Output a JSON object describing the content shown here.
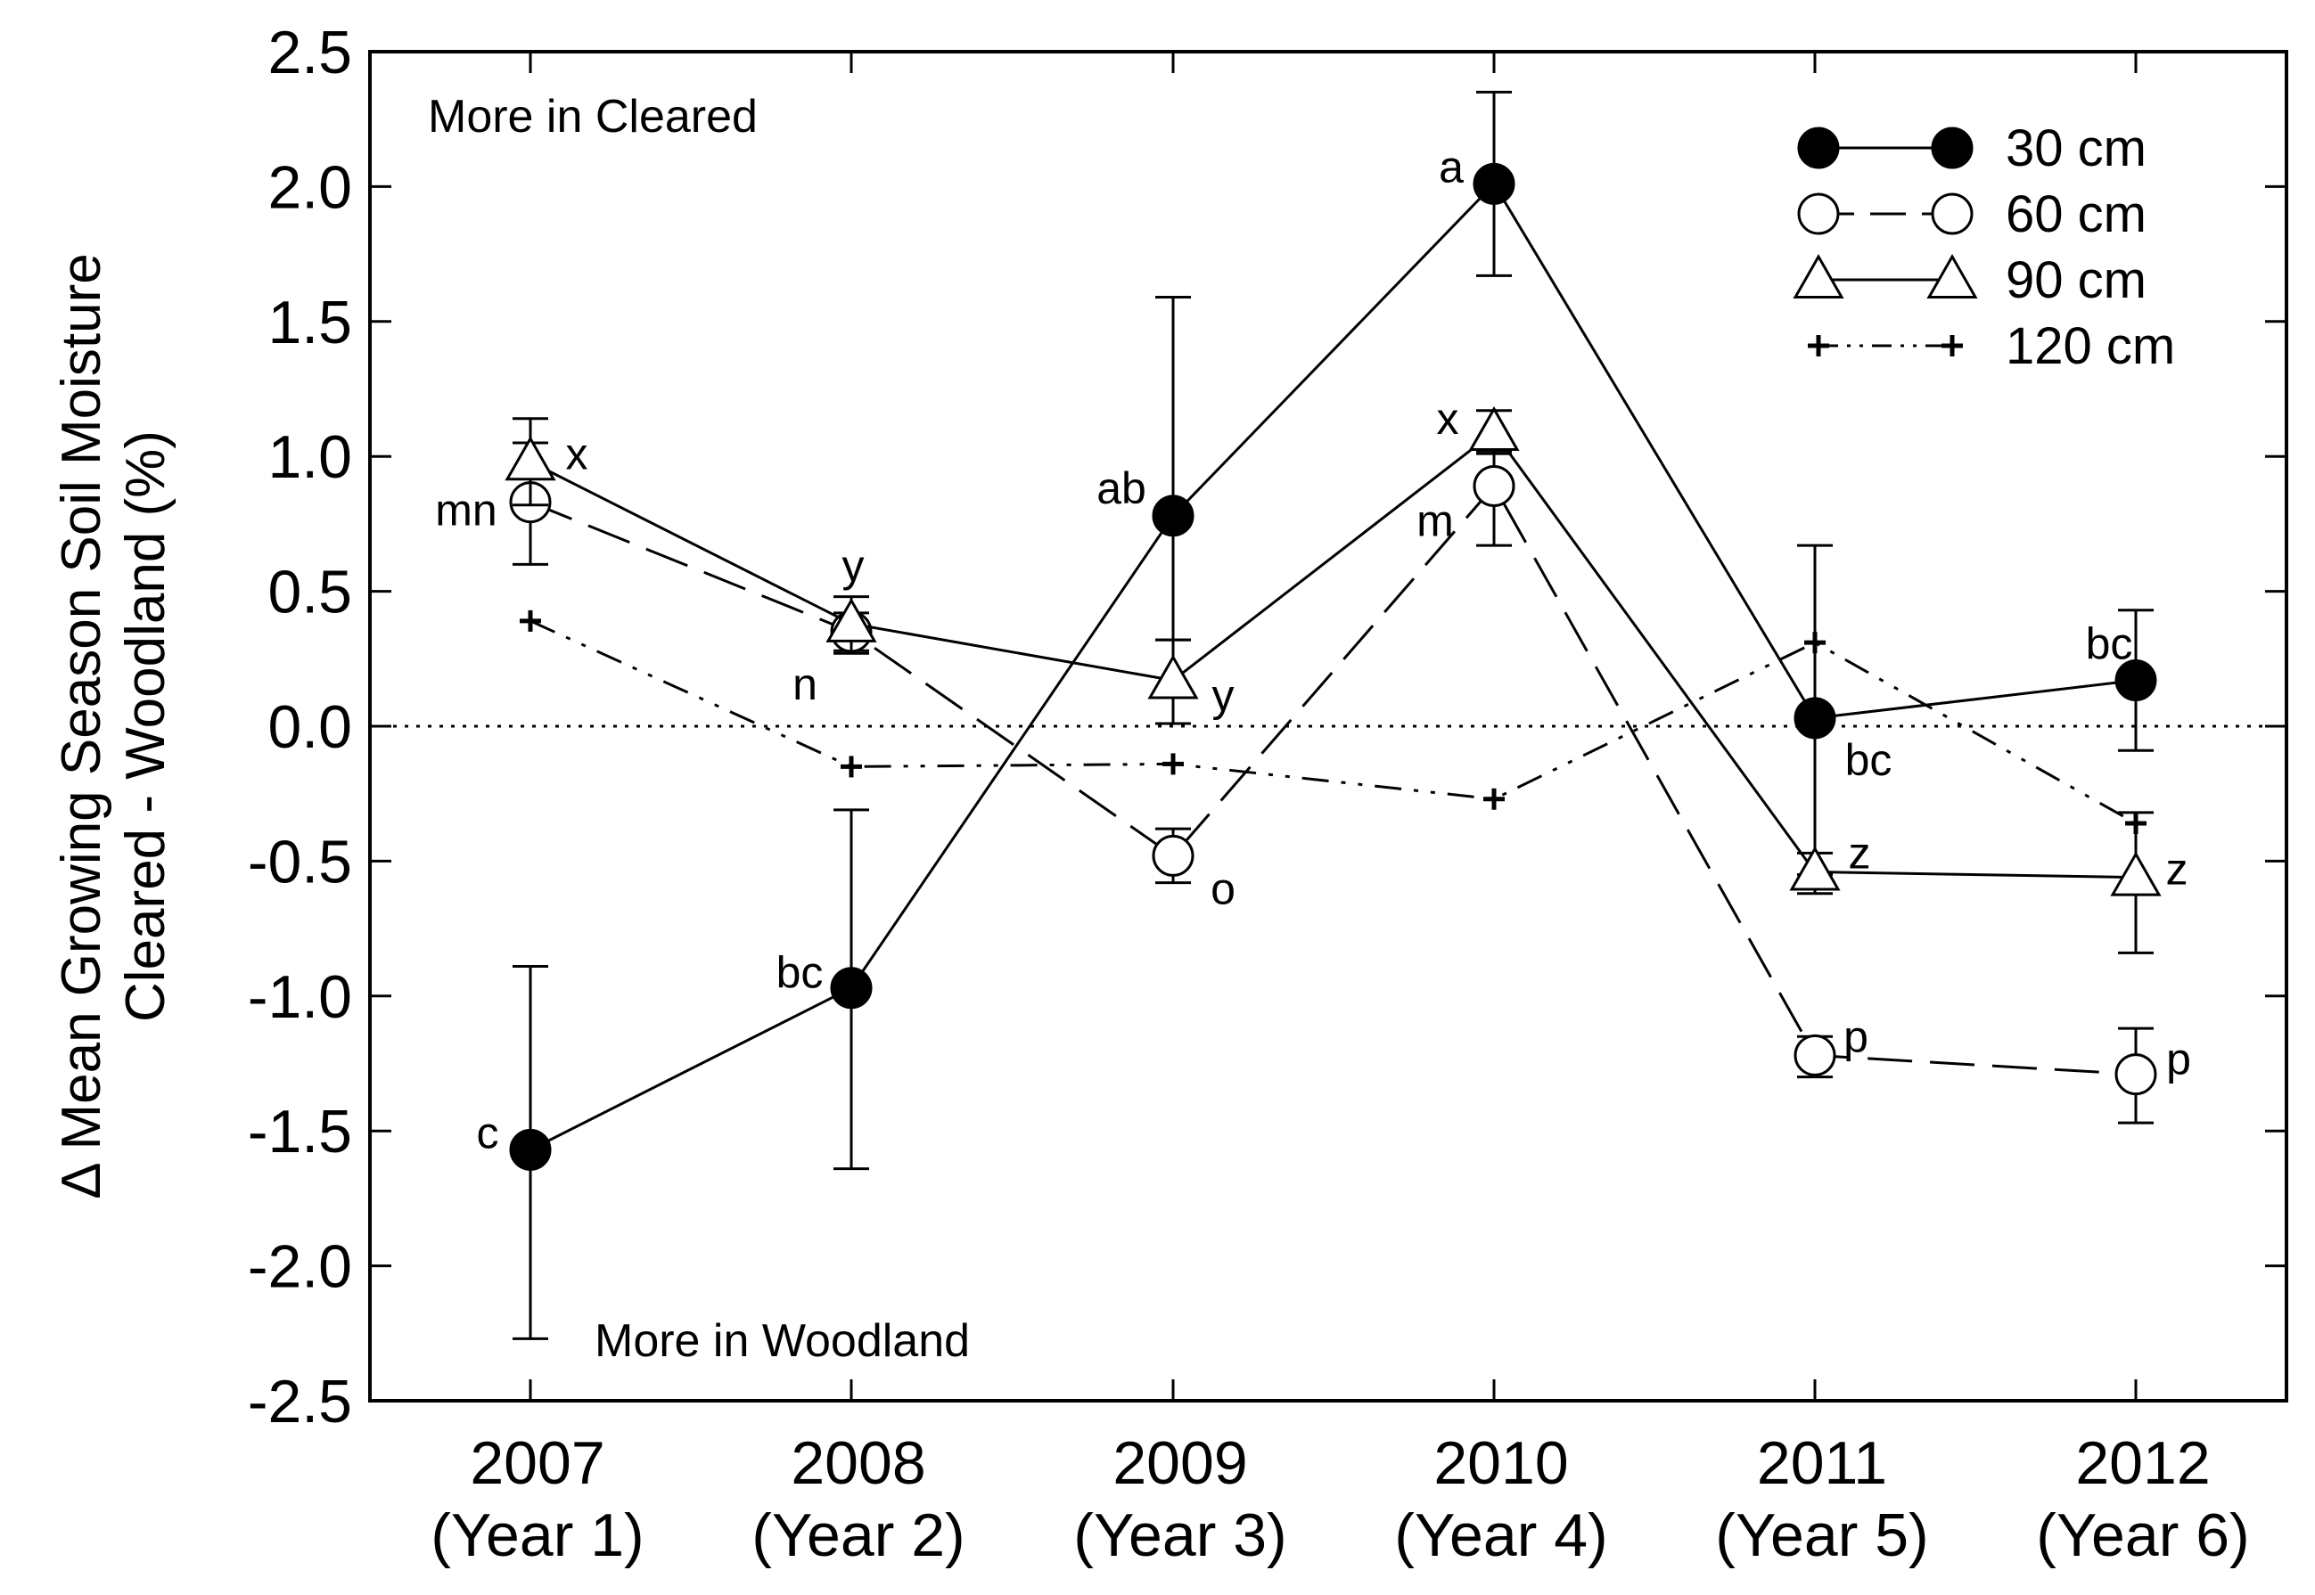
{
  "chart_data": {
    "type": "line",
    "ylabel_lines": [
      "Δ Mean Growing Season Soil Moisture",
      "Cleared - Woodland (%)"
    ],
    "ylim": [
      -2.5,
      2.5
    ],
    "yticks": [
      "2.5",
      "2.0",
      "1.5",
      "1.0",
      "0.5",
      "0.0",
      "-0.5",
      "-1.0",
      "-1.5",
      "-2.0",
      "-2.5"
    ],
    "ytick_values": [
      2.5,
      2.0,
      1.5,
      1.0,
      0.5,
      0.0,
      -0.5,
      -1.0,
      -1.5,
      -2.0,
      -2.5
    ],
    "categories": [
      {
        "year": "2007",
        "label": "(Year 1)"
      },
      {
        "year": "2008",
        "label": "(Year 2)"
      },
      {
        "year": "2009",
        "label": "(Year 3)"
      },
      {
        "year": "2010",
        "label": "(Year 4)"
      },
      {
        "year": "2011",
        "label": "(Year 5)"
      },
      {
        "year": "2012",
        "label": "(Year 6)"
      }
    ],
    "reference_line": 0.0,
    "region_labels": {
      "top": "More in Cleared",
      "bottom": "More in Woodland"
    },
    "series": [
      {
        "name": "30 cm",
        "marker": "filled-circle",
        "line": "solid",
        "values": [
          -1.57,
          -0.97,
          0.78,
          2.01,
          0.03,
          0.17
        ],
        "err_high": [
          -0.89,
          -0.31,
          1.59,
          2.35,
          0.67,
          0.43
        ],
        "err_low": [
          -2.27,
          -1.64,
          0.32,
          1.67,
          -0.55,
          -0.09
        ],
        "letters": [
          "c",
          "bc",
          "ab",
          "a",
          "bc",
          "bc"
        ]
      },
      {
        "name": "60 cm",
        "marker": "open-circle",
        "line": "dashed",
        "values": [
          0.83,
          0.35,
          -0.48,
          0.89,
          -1.22,
          -1.29
        ],
        "err_high": [
          1.05,
          0.42,
          -0.38,
          1.02,
          -1.15,
          -1.12
        ],
        "err_low": [
          0.6,
          0.28,
          -0.58,
          0.67,
          -1.3,
          -1.47
        ],
        "letters": [
          "mn",
          "n",
          "o",
          "m",
          "p",
          "p"
        ]
      },
      {
        "name": "90 cm",
        "marker": "open-triangle",
        "line": "solid",
        "values": [
          0.98,
          0.38,
          0.17,
          1.09,
          -0.54,
          -0.56
        ],
        "err_high": [
          1.14,
          0.48,
          0.32,
          1.17,
          -0.47,
          -0.32
        ],
        "err_low": [
          0.82,
          0.27,
          0.01,
          1.01,
          -0.62,
          -0.84
        ],
        "letters": [
          "x",
          "y",
          "y",
          "x",
          "z",
          "z"
        ]
      },
      {
        "name": "120 cm",
        "marker": "plus",
        "line": "dash-dot-dot",
        "values": [
          0.39,
          -0.15,
          -0.14,
          -0.27,
          0.31,
          -0.36
        ],
        "err_high": [
          null,
          null,
          null,
          null,
          null,
          null
        ],
        "err_low": [
          null,
          null,
          null,
          null,
          null,
          null
        ],
        "letters": [
          "",
          "",
          "",
          "",
          "",
          ""
        ]
      }
    ]
  }
}
